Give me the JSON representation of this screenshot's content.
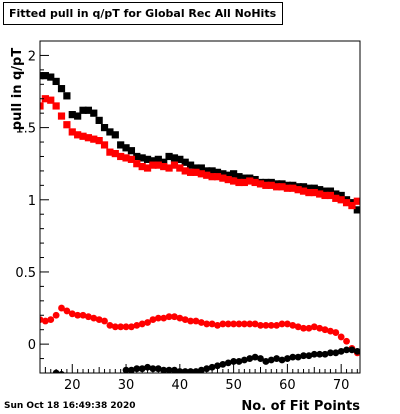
{
  "title": "Fitted pull in q/pT for Global Rec All NoHits",
  "footer": "Sun Oct 18 16:49:38 2020",
  "chart_data": {
    "type": "scatter",
    "title": "Fitted pull in q/pT for Global Rec All NoHits",
    "xlabel": "No. of Fit Points",
    "ylabel": "pull in q/pT",
    "xlim": [
      14,
      73.5
    ],
    "ylim": [
      -0.2,
      2.1
    ],
    "x_ticks": [
      20,
      30,
      40,
      50,
      60,
      70
    ],
    "y_ticks": [
      0,
      0.5,
      1,
      1.5,
      2
    ],
    "y_tick_labels": [
      "0",
      "0.5",
      "1",
      "1.5",
      "2"
    ],
    "grid": false,
    "series": [
      {
        "color": "#000000",
        "marker": "square",
        "x": [
          14,
          15,
          16,
          17,
          18,
          19,
          20,
          21,
          22,
          23,
          24,
          25,
          26,
          27,
          28,
          29,
          30,
          31,
          32,
          33,
          34,
          35,
          36,
          37,
          38,
          39,
          40,
          41,
          42,
          43,
          44,
          45,
          46,
          47,
          48,
          49,
          50,
          51,
          52,
          53,
          54,
          55,
          56,
          57,
          58,
          59,
          60,
          61,
          62,
          63,
          64,
          65,
          66,
          67,
          68,
          69,
          70,
          71,
          72,
          73
        ],
        "y": [
          1.86,
          1.86,
          1.85,
          1.82,
          1.77,
          1.72,
          1.59,
          1.58,
          1.62,
          1.62,
          1.6,
          1.55,
          1.5,
          1.47,
          1.45,
          1.38,
          1.36,
          1.34,
          1.3,
          1.29,
          1.28,
          1.27,
          1.28,
          1.26,
          1.3,
          1.29,
          1.28,
          1.26,
          1.24,
          1.22,
          1.22,
          1.2,
          1.2,
          1.19,
          1.18,
          1.17,
          1.18,
          1.16,
          1.15,
          1.15,
          1.14,
          1.12,
          1.12,
          1.12,
          1.11,
          1.11,
          1.1,
          1.1,
          1.09,
          1.09,
          1.08,
          1.08,
          1.07,
          1.06,
          1.06,
          1.04,
          1.03,
          1.0,
          0.98,
          0.93
        ]
      },
      {
        "color": "#ff0000",
        "marker": "square",
        "x": [
          14,
          15,
          16,
          17,
          18,
          19,
          20,
          21,
          22,
          23,
          24,
          25,
          26,
          27,
          28,
          29,
          30,
          31,
          32,
          33,
          34,
          35,
          36,
          37,
          38,
          39,
          40,
          41,
          42,
          43,
          44,
          45,
          46,
          47,
          48,
          49,
          50,
          51,
          52,
          53,
          54,
          55,
          56,
          57,
          58,
          59,
          60,
          61,
          62,
          63,
          64,
          65,
          66,
          67,
          68,
          69,
          70,
          71,
          72,
          73
        ],
        "y": [
          1.65,
          1.7,
          1.69,
          1.65,
          1.58,
          1.52,
          1.47,
          1.45,
          1.44,
          1.43,
          1.42,
          1.41,
          1.38,
          1.33,
          1.32,
          1.3,
          1.29,
          1.28,
          1.25,
          1.23,
          1.22,
          1.24,
          1.24,
          1.23,
          1.22,
          1.24,
          1.22,
          1.2,
          1.19,
          1.19,
          1.18,
          1.17,
          1.16,
          1.16,
          1.15,
          1.14,
          1.13,
          1.12,
          1.12,
          1.13,
          1.12,
          1.11,
          1.1,
          1.1,
          1.09,
          1.09,
          1.08,
          1.08,
          1.07,
          1.06,
          1.05,
          1.05,
          1.04,
          1.03,
          1.03,
          1.01,
          1.0,
          0.98,
          0.96,
          0.99
        ]
      },
      {
        "color": "#ff0000",
        "marker": "circle",
        "x": [
          14,
          15,
          16,
          17,
          18,
          19,
          20,
          21,
          22,
          23,
          24,
          25,
          26,
          27,
          28,
          29,
          30,
          31,
          32,
          33,
          34,
          35,
          36,
          37,
          38,
          39,
          40,
          41,
          42,
          43,
          44,
          45,
          46,
          47,
          48,
          49,
          50,
          51,
          52,
          53,
          54,
          55,
          56,
          57,
          58,
          59,
          60,
          61,
          62,
          63,
          64,
          65,
          66,
          67,
          68,
          69,
          70,
          71,
          72,
          73
        ],
        "y": [
          0.17,
          0.16,
          0.17,
          0.2,
          0.25,
          0.23,
          0.21,
          0.2,
          0.2,
          0.19,
          0.18,
          0.17,
          0.16,
          0.13,
          0.12,
          0.12,
          0.12,
          0.12,
          0.13,
          0.14,
          0.15,
          0.17,
          0.18,
          0.18,
          0.19,
          0.19,
          0.18,
          0.17,
          0.16,
          0.16,
          0.15,
          0.14,
          0.14,
          0.13,
          0.14,
          0.14,
          0.14,
          0.14,
          0.14,
          0.14,
          0.14,
          0.13,
          0.13,
          0.13,
          0.13,
          0.14,
          0.14,
          0.13,
          0.12,
          0.11,
          0.11,
          0.12,
          0.11,
          0.1,
          0.09,
          0.08,
          0.05,
          0.02,
          -0.03,
          -0.06
        ]
      },
      {
        "color": "#000000",
        "marker": "circle",
        "x": [
          17,
          18,
          30,
          31,
          32,
          33,
          34,
          35,
          36,
          37,
          38,
          39,
          40,
          41,
          42,
          43,
          44,
          45,
          46,
          47,
          48,
          49,
          50,
          51,
          52,
          53,
          54,
          55,
          56,
          57,
          58,
          59,
          60,
          61,
          62,
          63,
          64,
          65,
          66,
          67,
          68,
          69,
          70,
          71,
          72,
          73
        ],
        "y": [
          -0.2,
          -0.21,
          -0.18,
          -0.18,
          -0.17,
          -0.17,
          -0.16,
          -0.17,
          -0.17,
          -0.18,
          -0.18,
          -0.18,
          -0.19,
          -0.19,
          -0.19,
          -0.19,
          -0.18,
          -0.17,
          -0.16,
          -0.15,
          -0.14,
          -0.13,
          -0.12,
          -0.12,
          -0.11,
          -0.1,
          -0.09,
          -0.1,
          -0.12,
          -0.11,
          -0.1,
          -0.11,
          -0.1,
          -0.09,
          -0.09,
          -0.08,
          -0.08,
          -0.07,
          -0.07,
          -0.07,
          -0.06,
          -0.06,
          -0.05,
          -0.04,
          -0.04,
          -0.05
        ]
      }
    ]
  }
}
